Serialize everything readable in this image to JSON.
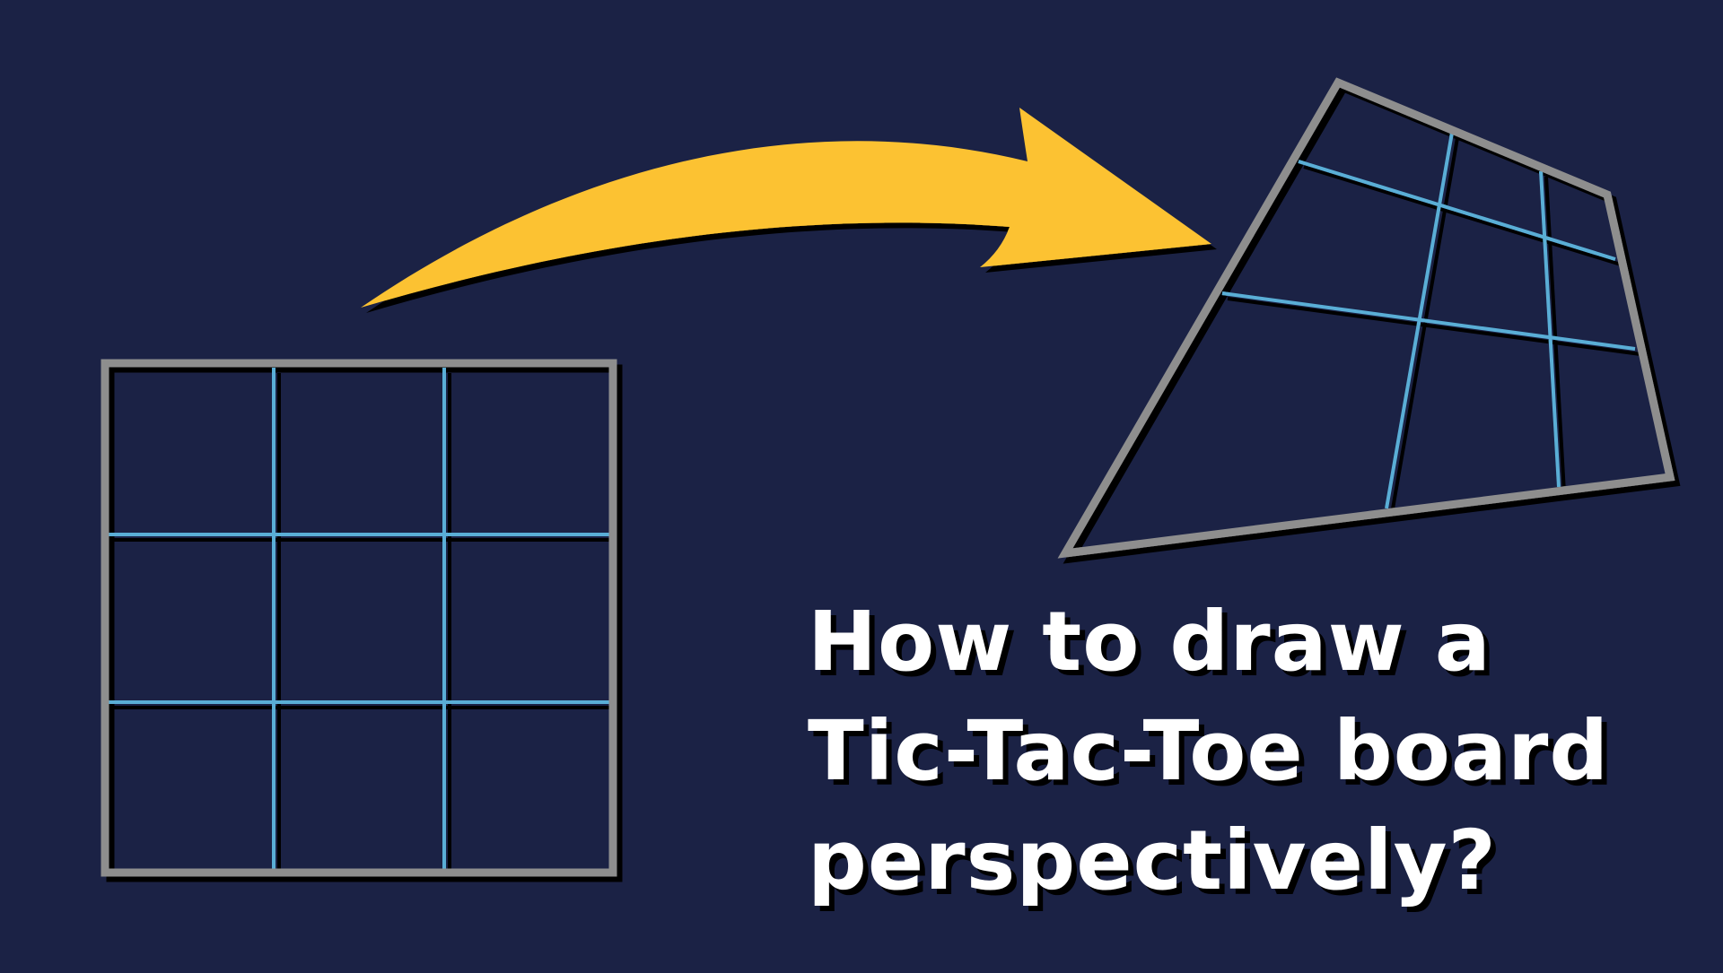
{
  "title_lines": [
    "How to draw a",
    "Tic-Tac-Toe board",
    "perspectively?"
  ],
  "colors": {
    "background": "#1b2245",
    "frame": "#8e8e8e",
    "grid_lines": "#5aaed6",
    "arrow": "#fcc232",
    "shadow": "#000000",
    "title_text": "#ffffff"
  },
  "icons": {
    "arrow": "curved-arrow-icon"
  }
}
